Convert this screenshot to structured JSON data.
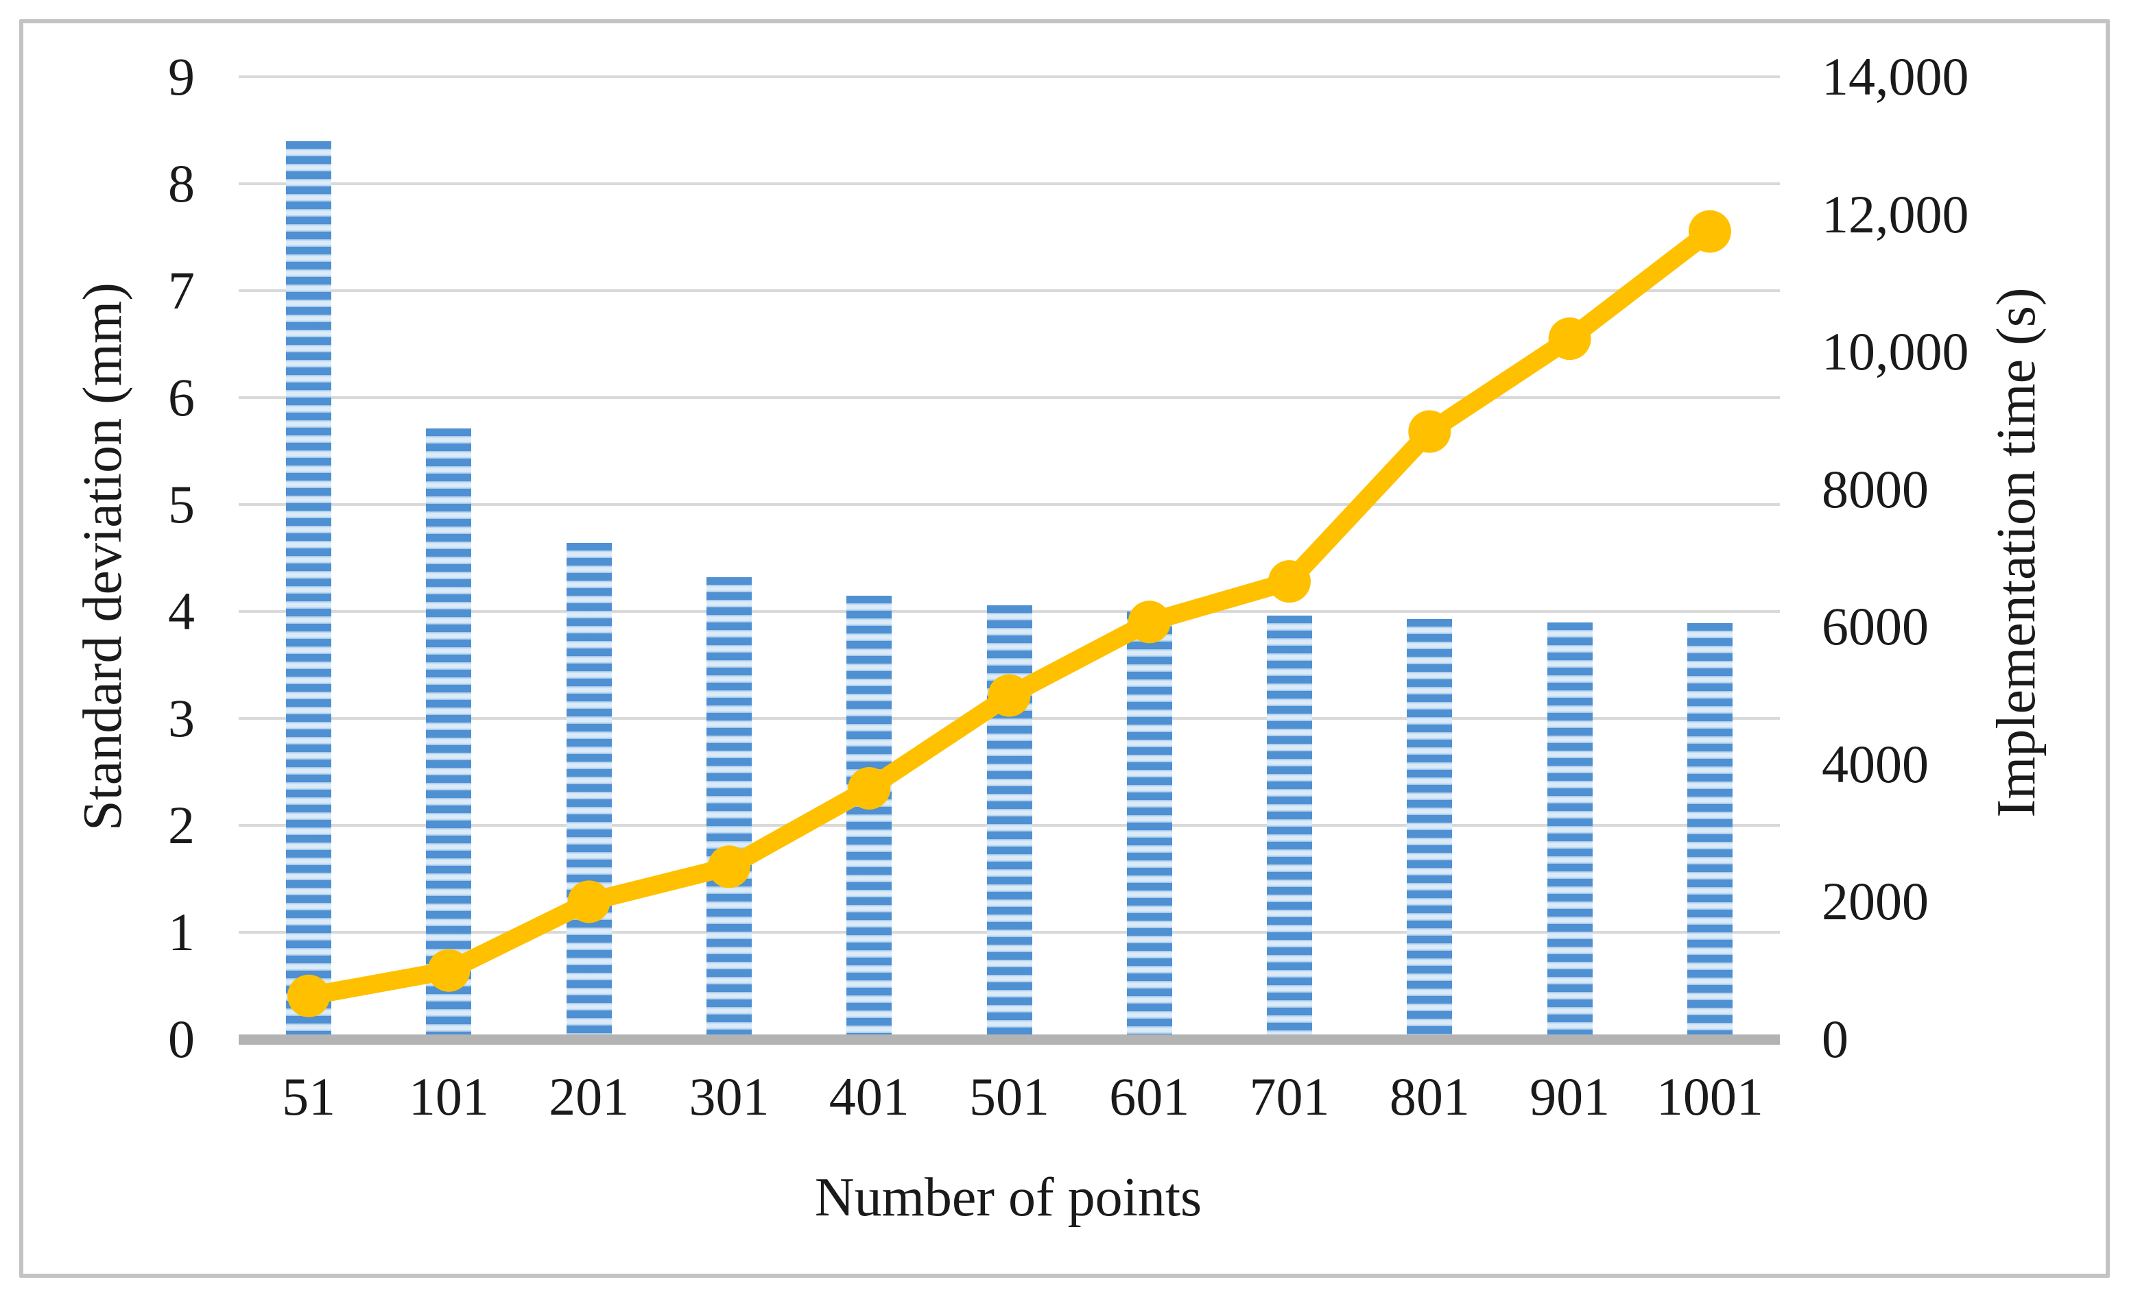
{
  "chart_data": {
    "type": "combo-bar-line",
    "title": "",
    "legend_position": "none",
    "grid": true,
    "categories": [
      "51",
      "101",
      "201",
      "301",
      "401",
      "501",
      "601",
      "701",
      "801",
      "901",
      "1001"
    ],
    "series": [
      {
        "name": "Standard deviation",
        "type": "bar",
        "y_axis": "left",
        "color": "#4e90d2",
        "stripe_light_color": "#dcebf8",
        "values": [
          8.4,
          5.71,
          4.64,
          4.32,
          4.15,
          4.06,
          4.0,
          3.96,
          3.93,
          3.9,
          3.89
        ]
      },
      {
        "name": "Implementation time",
        "type": "line",
        "y_axis": "right",
        "color": "#FFC000",
        "marker": "circle",
        "values": [
          630,
          1000,
          2000,
          2510,
          3650,
          5000,
          6070,
          6660,
          8840,
          10190,
          11750
        ]
      }
    ],
    "x_axis": {
      "label": "Number of points",
      "tick_labels": [
        "51",
        "101",
        "201",
        "301",
        "401",
        "501",
        "601",
        "701",
        "801",
        "901",
        "1001"
      ]
    },
    "left_axis": {
      "label": "Standard deviation (mm)",
      "min": 0,
      "max": 9,
      "step": 1,
      "tick_labels": [
        "0",
        "1",
        "2",
        "3",
        "4",
        "5",
        "6",
        "7",
        "8",
        "9"
      ]
    },
    "right_axis": {
      "label": "Implementation time (s)",
      "min": 0,
      "max": 14000,
      "step": 2000,
      "tick_labels": [
        "0",
        "2000",
        "4000",
        "6000",
        "8000",
        "10,000",
        "12,000",
        "14,000"
      ]
    },
    "colors": {
      "gridline": "#d9d9d9",
      "baseline": "#b3b3b3",
      "frame": "#c3c3c3",
      "text": "#1a1a1a",
      "background": "#ffffff"
    }
  }
}
